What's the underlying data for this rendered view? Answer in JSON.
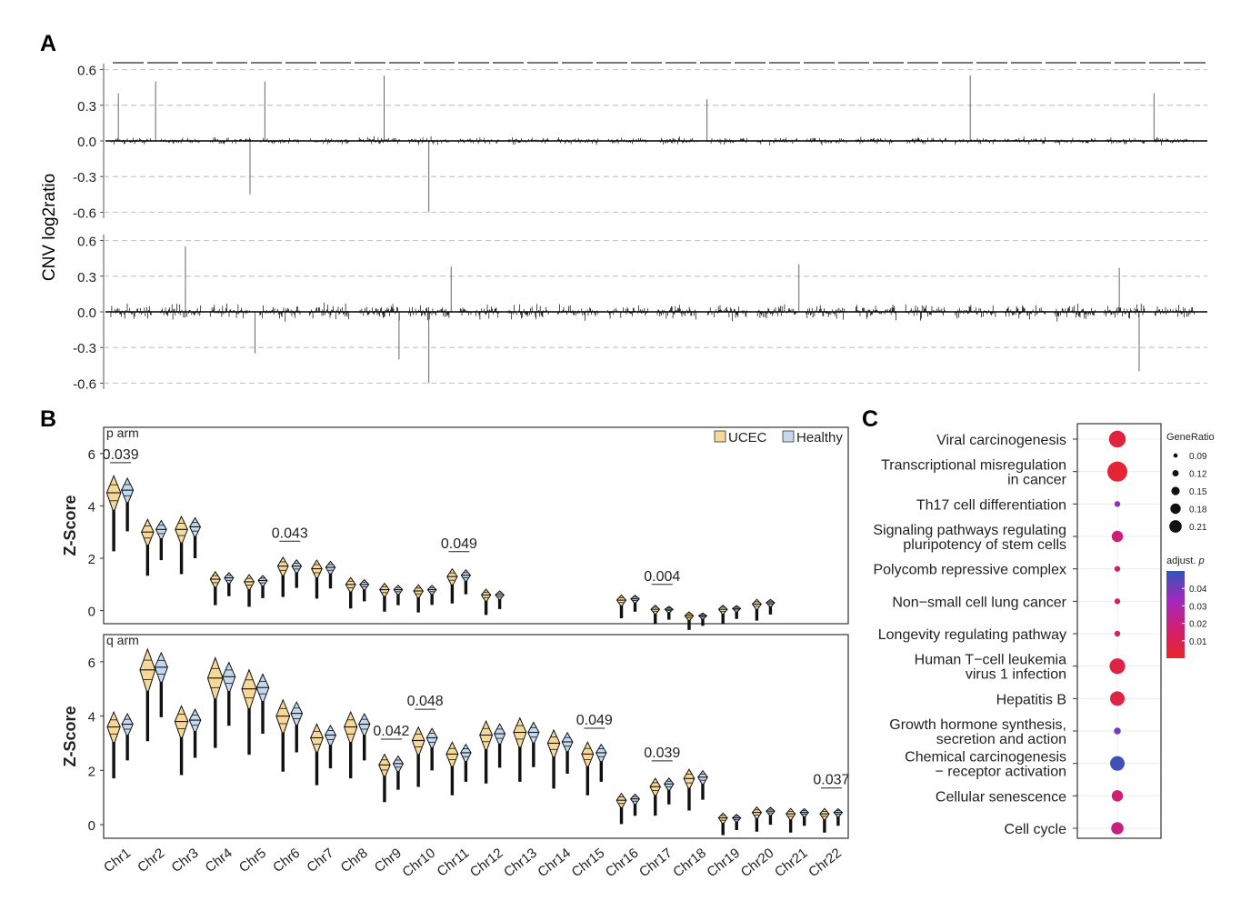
{
  "panel_letters": {
    "a": "A",
    "b": "B",
    "c": "C"
  },
  "colors": {
    "ucec": "#f6d99a",
    "healthy": "#c4d8ef",
    "trace": "#000000",
    "grid": "#c8c8c8",
    "low_p": "#e8262a",
    "high_p": "#3455b5"
  },
  "chart_data": [
    {
      "id": "panel-a",
      "type": "line",
      "title": "",
      "ylabel": "CNV log2ratio",
      "ylim": [
        -0.65,
        0.65
      ],
      "yticks": [
        "0.6",
        "0.3",
        "0.0",
        "-0.3",
        "-0.6"
      ],
      "ytick_values": [
        0.6,
        0.3,
        0.0,
        -0.3,
        -0.6
      ],
      "chromosome_count": 22,
      "series": [
        {
          "name": "top track",
          "noise_amplitude": 0.05,
          "spikes": [
            [
              0.3,
              0.4
            ],
            [
              1.8,
              0.5
            ],
            [
              5.6,
              -0.45
            ],
            [
              6.2,
              0.5
            ],
            [
              11.0,
              0.55
            ],
            [
              12.8,
              -0.6
            ],
            [
              24.0,
              0.35
            ],
            [
              34.6,
              0.55
            ],
            [
              42.0,
              0.4
            ]
          ]
        },
        {
          "name": "bottom track",
          "noise_amplitude": 0.1,
          "spikes": [
            [
              3.0,
              0.55
            ],
            [
              5.8,
              -0.35
            ],
            [
              11.6,
              -0.4
            ],
            [
              12.8,
              -0.6
            ],
            [
              13.7,
              0.38
            ],
            [
              27.7,
              0.4
            ],
            [
              40.6,
              0.37
            ],
            [
              41.4,
              -0.5
            ]
          ]
        }
      ]
    },
    {
      "id": "panel-b",
      "type": "violin",
      "ylabel": "Z-Score",
      "categories": [
        "Chr1",
        "Chr2",
        "Chr3",
        "Chr4",
        "Chr5",
        "Chr6",
        "Chr7",
        "Chr8",
        "Chr9",
        "Chr10",
        "Chr11",
        "Chr12",
        "Chr13",
        "Chr14",
        "Chr15",
        "Chr16",
        "Chr17",
        "Chr18",
        "Chr19",
        "Chr20",
        "Chr21",
        "Chr22"
      ],
      "legend": [
        "UCEC",
        "Healthy"
      ],
      "legend_position": "top-right",
      "panels": [
        {
          "label": "p arm",
          "ylim": [
            -0.5,
            7.0
          ],
          "yticks": [
            "0",
            "2",
            "4",
            "6"
          ],
          "ytick_values": [
            0,
            2,
            4,
            6
          ],
          "ucec": [
            4.5,
            3.0,
            3.1,
            1.2,
            1.1,
            1.7,
            1.6,
            1.0,
            0.8,
            0.75,
            1.3,
            0.6,
            null,
            null,
            null,
            0.4,
            0.05,
            -0.2,
            0.05,
            0.25,
            null,
            null
          ],
          "healthy": [
            4.6,
            3.1,
            3.2,
            1.25,
            1.15,
            1.7,
            1.65,
            1.0,
            0.8,
            0.8,
            1.35,
            0.6,
            null,
            null,
            null,
            0.45,
            0.05,
            -0.2,
            0.08,
            0.3,
            null,
            null
          ],
          "pvalues": [
            {
              "chr": "Chr1",
              "label": "0.039"
            },
            {
              "chr": "Chr6",
              "label": "0.043"
            },
            {
              "chr": "Chr11",
              "label": "0.049"
            },
            {
              "chr": "Chr17",
              "label": "0.004"
            }
          ]
        },
        {
          "label": "q arm",
          "ylim": [
            -0.5,
            7.0
          ],
          "yticks": [
            "0",
            "2",
            "4",
            "6"
          ],
          "ytick_values": [
            0,
            2,
            4,
            6
          ],
          "ucec": [
            3.6,
            5.7,
            3.8,
            5.4,
            5.0,
            4.0,
            3.2,
            3.6,
            2.2,
            3.1,
            2.6,
            3.3,
            3.4,
            3.0,
            2.6,
            0.9,
            1.4,
            1.7,
            0.25,
            0.45,
            0.4,
            0.4
          ],
          "healthy": [
            3.7,
            5.8,
            3.85,
            5.45,
            5.05,
            4.1,
            3.3,
            3.7,
            2.25,
            3.2,
            2.65,
            3.35,
            3.4,
            3.05,
            2.65,
            0.95,
            1.5,
            1.75,
            0.25,
            0.5,
            0.45,
            0.45
          ],
          "pvalues": [
            {
              "chr": "Chr9",
              "label": "0.042"
            },
            {
              "chr": "Chr10",
              "label": "0.048"
            },
            {
              "chr": "Chr15",
              "label": "0.049"
            },
            {
              "chr": "Chr17",
              "label": "0.039"
            },
            {
              "chr": "Chr22",
              "label": "0.037"
            }
          ]
        }
      ]
    },
    {
      "id": "panel-c",
      "type": "scatter",
      "title": "",
      "categories": [
        [
          "Viral carcinogenesis"
        ],
        [
          "Transcriptional misregulation",
          "in cancer"
        ],
        [
          "Th17 cell differentiation"
        ],
        [
          "Signaling pathways regulating",
          "pluripotency of stem cells"
        ],
        [
          "Polycomb repressive complex"
        ],
        [
          "Non−small cell lung cancer"
        ],
        [
          "Longevity regulating pathway"
        ],
        [
          "Human T−cell leukemia",
          "virus 1 infection"
        ],
        [
          "Hepatitis B"
        ],
        [
          "Growth hormone synthesis,",
          "secretion and action"
        ],
        [
          "Chemical carcinogenesis",
          "− receptor activation"
        ],
        [
          "Cellular senescence"
        ],
        [
          "Cell cycle"
        ]
      ],
      "gene_ratio": [
        0.18,
        0.21,
        0.08,
        0.13,
        0.08,
        0.08,
        0.08,
        0.17,
        0.16,
        0.09,
        0.16,
        0.13,
        0.14
      ],
      "adjust_p": [
        0.005,
        0.003,
        0.035,
        0.018,
        0.015,
        0.015,
        0.015,
        0.007,
        0.007,
        0.04,
        0.048,
        0.018,
        0.02
      ],
      "size_legend": {
        "title": "GeneRatio",
        "labels": [
          "0.09",
          "0.12",
          "0.15",
          "0.18",
          "0.21"
        ],
        "values": [
          0.09,
          0.12,
          0.15,
          0.18,
          0.21
        ]
      },
      "color_legend": {
        "title": "adjust. p",
        "labels": [
          "0.04",
          "0.03",
          "0.02",
          "0.01"
        ],
        "values": [
          0.04,
          0.03,
          0.02,
          0.01
        ],
        "range": [
          0.0,
          0.05
        ]
      }
    }
  ]
}
